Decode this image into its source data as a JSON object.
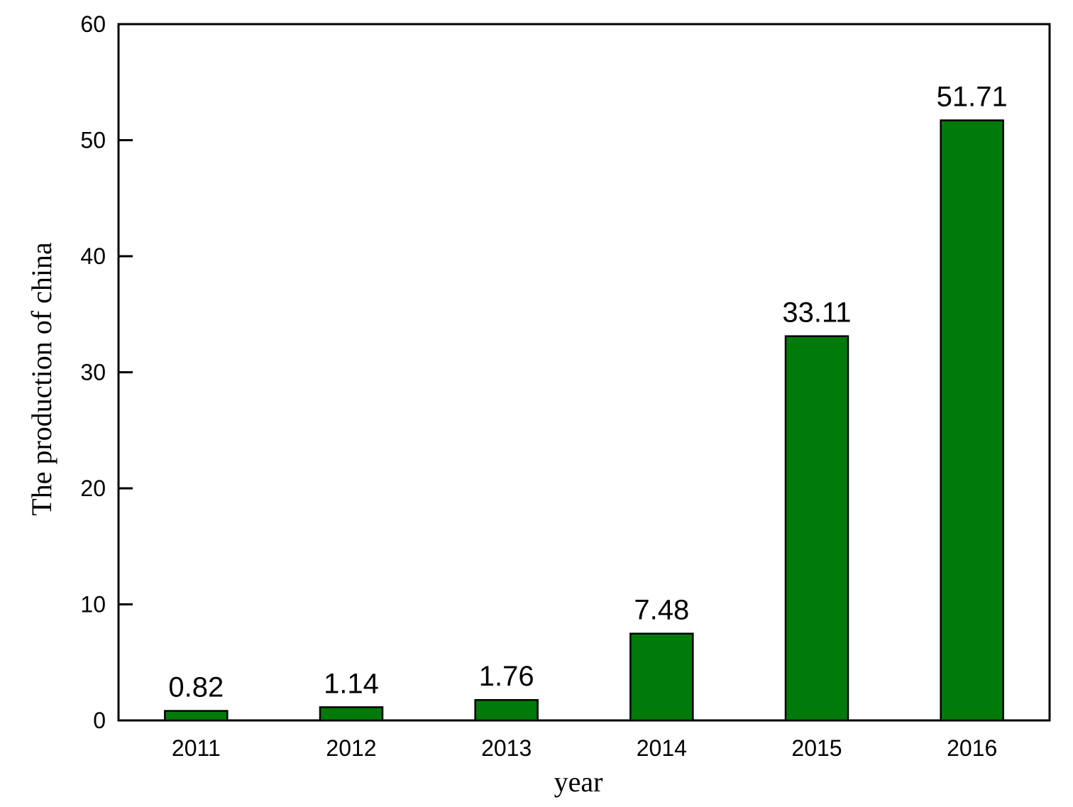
{
  "chart_data": {
    "type": "bar",
    "title": "",
    "xlabel": "year",
    "ylabel": "The production of china",
    "categories": [
      "2011",
      "2012",
      "2013",
      "2014",
      "2015",
      "2016"
    ],
    "values": [
      0.82,
      1.14,
      1.76,
      7.48,
      33.11,
      51.71
    ],
    "data_labels": [
      "0.82",
      "1.14",
      "1.76",
      "7.48",
      "33.11",
      "51.71"
    ],
    "ylim": [
      0,
      60
    ],
    "yticks": [
      0,
      10,
      20,
      30,
      40,
      50,
      60
    ],
    "ytick_labels": [
      "0",
      "10",
      "20",
      "30",
      "40",
      "50",
      "60"
    ],
    "grid": false,
    "legend": "none",
    "colors": {
      "bar_fill": "#007a0a",
      "bar_stroke": "#000000",
      "axis": "#000000"
    }
  }
}
